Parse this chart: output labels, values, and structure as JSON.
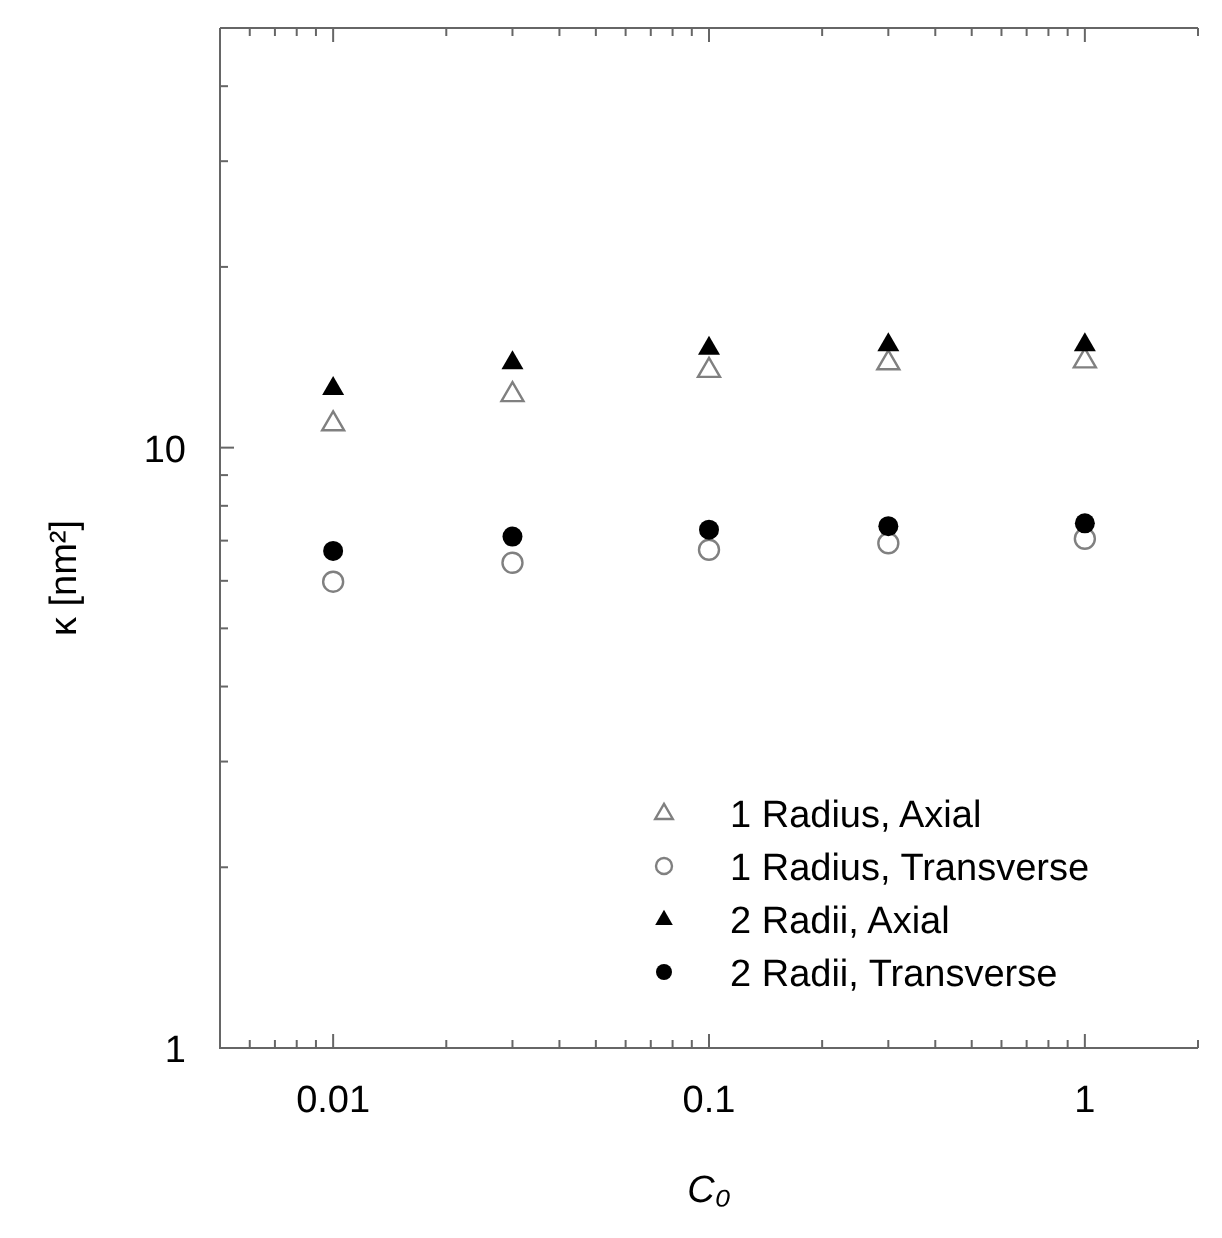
{
  "chart_data": {
    "type": "scatter",
    "xlabel": "C₀",
    "ylabel": "κ [nm²]",
    "log": "xy",
    "grid": false,
    "legend": "bottom right",
    "x": [
      0.01,
      0.03,
      0.1,
      0.3,
      1
    ],
    "xlim": [
      0.005,
      2
    ],
    "ylim": [
      1,
      50
    ],
    "xticks": [
      {
        "value": 0.006,
        "label": null
      },
      {
        "value": 0.007,
        "label": null
      },
      {
        "value": 0.008,
        "label": null
      },
      {
        "value": 0.009,
        "label": null
      },
      0.01,
      {
        "value": 0.02,
        "label": null
      },
      {
        "value": 0.03,
        "label": null
      },
      {
        "value": 0.04,
        "label": null
      },
      {
        "value": 0.05,
        "label": null
      },
      {
        "value": 0.06,
        "label": null
      },
      {
        "value": 0.07,
        "label": null
      },
      {
        "value": 0.08,
        "label": null
      },
      {
        "value": 0.09,
        "label": null
      },
      0.1,
      {
        "value": 0.2,
        "label": null
      },
      {
        "value": 0.3,
        "label": null
      },
      {
        "value": 0.4,
        "label": null
      },
      {
        "value": 0.5,
        "label": null
      },
      {
        "value": 0.6,
        "label": null
      },
      {
        "value": 0.7,
        "label": null
      },
      {
        "value": 0.8,
        "label": null
      },
      {
        "value": 0.9,
        "label": null
      },
      1,
      {
        "value": 2,
        "label": null
      }
    ],
    "yticks": [
      1,
      {
        "value": 2,
        "label": null
      },
      {
        "value": 3,
        "label": null
      },
      {
        "value": 4,
        "label": null
      },
      {
        "value": 5,
        "label": null
      },
      {
        "value": 6,
        "label": null
      },
      {
        "value": 7,
        "label": null
      },
      {
        "value": 8,
        "label": null
      },
      {
        "value": 9,
        "label": null
      },
      10,
      {
        "value": 20,
        "label": null
      },
      {
        "value": 30,
        "label": null
      },
      {
        "value": 40,
        "label": null
      },
      {
        "value": 50,
        "label": null
      }
    ],
    "series": [
      {
        "name": "1 Radius, Axial",
        "color": "#808080",
        "marker": "triangle",
        "values": [
          11.0,
          12.3,
          13.5,
          13.9,
          14.0
        ]
      },
      {
        "name": "1 Radius, Transverse",
        "color": "#808080",
        "marker": "circle",
        "values": [
          5.98,
          6.43,
          6.76,
          6.93,
          7.05
        ]
      },
      {
        "name": "2 Radii, Axial",
        "color": "#000000",
        "marker": "triangle",
        "values": [
          12.6,
          13.9,
          14.7,
          14.9,
          14.9
        ]
      },
      {
        "name": "2 Radii, Transverse",
        "color": "#000000",
        "marker": "circle",
        "values": [
          6.73,
          7.11,
          7.3,
          7.4,
          7.48
        ]
      }
    ]
  }
}
